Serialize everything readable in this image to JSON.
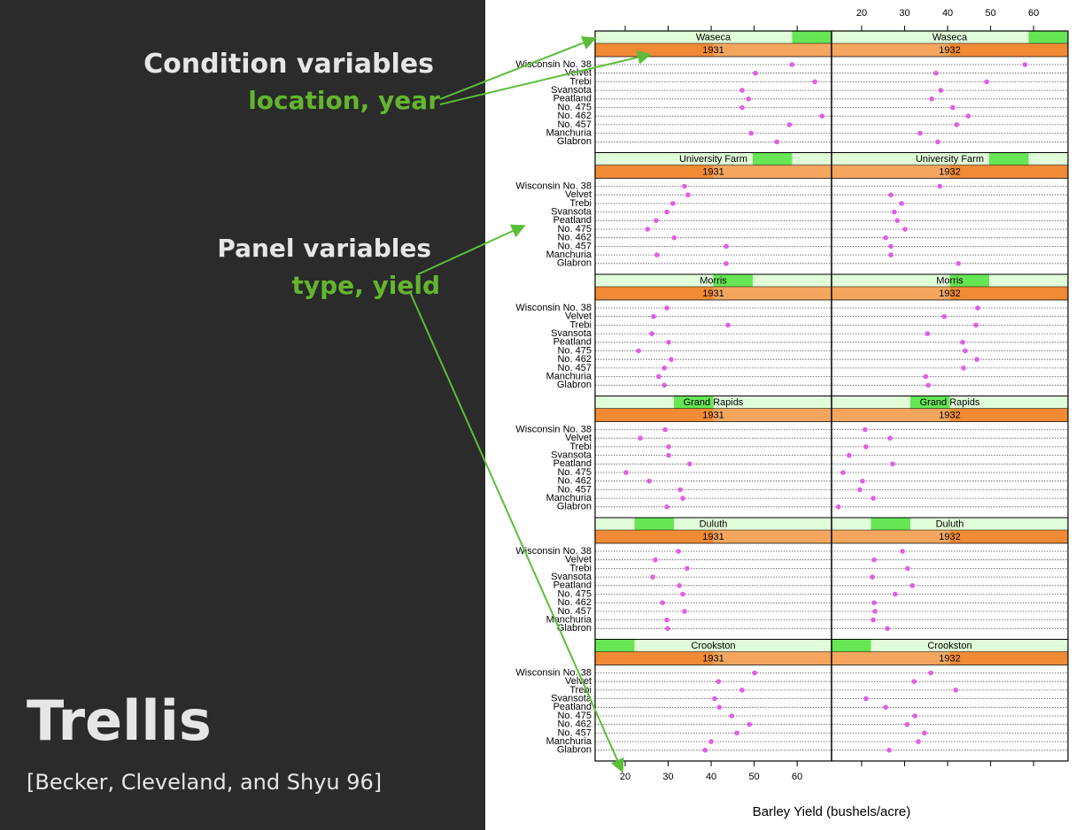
{
  "slide": {
    "condition_heading": "Condition variables",
    "condition_vars": "location, year",
    "panel_heading": "Panel variables",
    "panel_vars": "type, yield",
    "title": "Trellis",
    "citation": "[Becker, Cleveland, and Shyu 96]"
  },
  "chart_data": {
    "type": "dot",
    "xlabel": "Barley Yield (bushels/acre)",
    "xlim": [
      13,
      68
    ],
    "xticks": [
      20,
      30,
      40,
      50,
      60
    ],
    "categories": [
      "Wisconsin No. 38",
      "Velvet",
      "Trebi",
      "Svansota",
      "Peatland",
      "No. 475",
      "No. 462",
      "No. 457",
      "Manchuria",
      "Glabron"
    ],
    "color": "#e25ee6",
    "location_strip_color": "#e0fcd8",
    "location_indicator_color": "#66e655",
    "year_strip_color": "#f08a35",
    "year_indicator_color": "#fffbe0",
    "locations": [
      "Waseca",
      "University Farm",
      "Morris",
      "Grand Rapids",
      "Duluth",
      "Crookston"
    ],
    "years": [
      "1931",
      "1932"
    ],
    "panels": [
      {
        "location": "Waseca",
        "year": "1931",
        "values": [
          58.8,
          50.3,
          64.1,
          47.2,
          48.7,
          47.2,
          65.8,
          58.2,
          49.3,
          55.3
        ]
      },
      {
        "location": "Waseca",
        "year": "1932",
        "values": [
          58.0,
          37.3,
          49.1,
          38.4,
          36.3,
          41.2,
          44.8,
          42.1,
          33.6,
          37.7
        ]
      },
      {
        "location": "University Farm",
        "year": "1931",
        "values": [
          33.8,
          34.6,
          31.1,
          29.7,
          27.2,
          25.2,
          31.4,
          43.5,
          27.4,
          43.5
        ]
      },
      {
        "location": "University Farm",
        "year": "1932",
        "values": [
          38.2,
          26.8,
          29.3,
          27.6,
          28.3,
          30.1,
          25.6,
          26.8,
          26.8,
          42.5
        ]
      },
      {
        "location": "Morris",
        "year": "1931",
        "values": [
          29.7,
          26.6,
          43.9,
          26.2,
          30.1,
          23.1,
          30.7,
          29.1,
          27.8,
          29.1
        ]
      },
      {
        "location": "Morris",
        "year": "1932",
        "values": [
          47.0,
          39.2,
          46.6,
          35.3,
          43.5,
          44.1,
          46.8,
          43.7,
          34.9,
          35.5
        ]
      },
      {
        "location": "Grand Rapids",
        "year": "1931",
        "values": [
          29.3,
          23.5,
          30.1,
          30.1,
          35.0,
          20.2,
          25.6,
          32.8,
          33.4,
          29.7
        ]
      },
      {
        "location": "Grand Rapids",
        "year": "1932",
        "values": [
          20.8,
          26.6,
          21.0,
          17.1,
          27.2,
          15.7,
          20.2,
          19.6,
          22.7,
          14.6
        ]
      },
      {
        "location": "Duluth",
        "year": "1931",
        "values": [
          32.4,
          27.0,
          34.4,
          26.4,
          32.6,
          33.4,
          28.7,
          33.8,
          29.7,
          29.9
        ]
      },
      {
        "location": "Duluth",
        "year": "1932",
        "values": [
          29.5,
          22.9,
          30.7,
          22.5,
          31.8,
          27.8,
          22.9,
          23.1,
          22.7,
          26.0
        ]
      },
      {
        "location": "Crookston",
        "year": "1931",
        "values": [
          50.1,
          41.7,
          47.2,
          40.8,
          41.9,
          44.8,
          48.9,
          46.0,
          40.0,
          38.6
        ]
      },
      {
        "location": "Crookston",
        "year": "1932",
        "values": [
          36.1,
          32.2,
          41.9,
          21.0,
          25.6,
          32.4,
          30.6,
          34.6,
          33.2,
          26.4
        ]
      }
    ]
  }
}
